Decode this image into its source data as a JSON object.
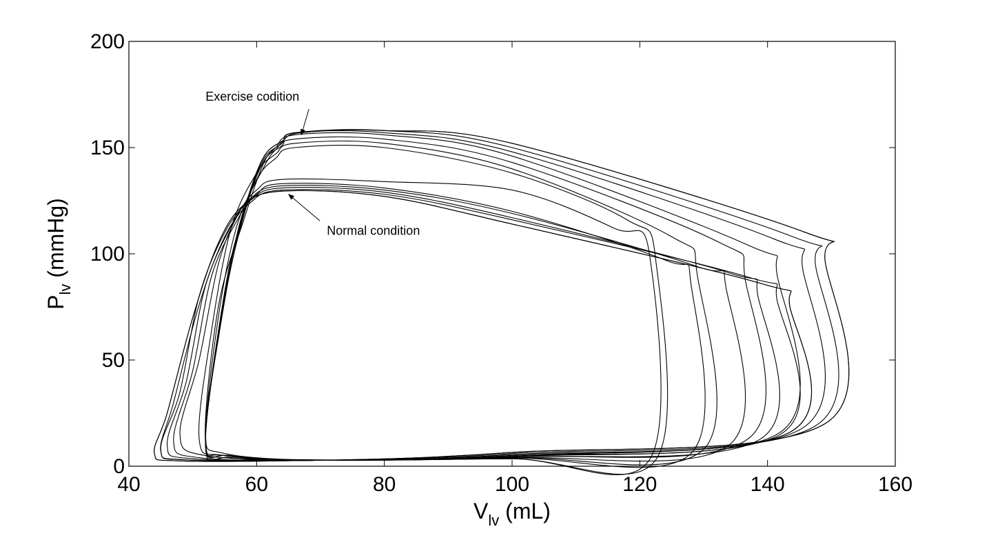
{
  "chart_data": {
    "type": "line",
    "title": "",
    "xlabel": "V",
    "xlabel_sub": "lv",
    "xlabel_unit": " (mL)",
    "ylabel": "P",
    "ylabel_sub": "lv",
    "ylabel_unit": " (mmHg)",
    "xlim": [
      40,
      160
    ],
    "ylim": [
      0,
      200
    ],
    "xticks": [
      40,
      60,
      80,
      100,
      120,
      140,
      160
    ],
    "yticks": [
      0,
      50,
      100,
      150,
      200
    ],
    "grid": false,
    "line_color": "#000000",
    "annotations": [
      {
        "text": "Exercise codition",
        "x": 52,
        "y": 172,
        "arrow_to": [
          67,
          156
        ]
      },
      {
        "text": "Normal condition",
        "x": 71,
        "y": 109,
        "arrow_to": [
          65,
          128
        ]
      }
    ],
    "series": [
      {
        "values": [
          [
            121.5,
            3
          ],
          [
            121.5,
            100
          ],
          [
            116,
            112
          ],
          [
            100,
            130
          ],
          [
            80,
            134
          ],
          [
            64,
            135
          ],
          [
            60,
            130
          ],
          [
            57,
            118
          ],
          [
            54,
            95
          ],
          [
            51,
            50
          ],
          [
            48,
            15
          ],
          [
            52,
            5
          ],
          [
            70,
            3
          ],
          [
            100,
            3.5
          ],
          [
            121.5,
            3
          ]
        ]
      },
      {
        "values": [
          [
            128,
            6
          ],
          [
            128,
            86
          ],
          [
            124,
            97
          ],
          [
            100,
            120
          ],
          [
            80,
            131
          ],
          [
            64,
            133
          ],
          [
            60,
            128
          ],
          [
            57,
            116
          ],
          [
            53,
            90
          ],
          [
            50,
            45
          ],
          [
            47,
            12
          ],
          [
            51,
            4
          ],
          [
            70,
            2.8
          ],
          [
            100,
            3.8
          ],
          [
            128,
            6
          ]
        ]
      },
      {
        "values": [
          [
            134,
            10
          ],
          [
            133.5,
            84
          ],
          [
            129,
            94
          ],
          [
            100,
            119
          ],
          [
            80,
            130
          ],
          [
            64,
            132
          ],
          [
            59,
            126
          ],
          [
            56,
            113
          ],
          [
            52,
            85
          ],
          [
            49,
            40
          ],
          [
            46,
            10
          ],
          [
            50,
            3.5
          ],
          [
            70,
            2.8
          ],
          [
            100,
            4
          ],
          [
            134,
            10
          ]
        ]
      },
      {
        "values": [
          [
            139,
            13
          ],
          [
            138.5,
            80
          ],
          [
            134,
            91
          ],
          [
            100,
            117
          ],
          [
            80,
            129
          ],
          [
            64,
            131
          ],
          [
            59,
            125
          ],
          [
            55,
            110
          ],
          [
            51,
            80
          ],
          [
            48,
            35
          ],
          [
            45,
            8
          ],
          [
            49,
            3
          ],
          [
            70,
            2.8
          ],
          [
            100,
            4.3
          ],
          [
            139,
            13
          ]
        ]
      },
      {
        "values": [
          [
            142,
            15
          ],
          [
            141.5,
            78
          ],
          [
            137,
            89
          ],
          [
            100,
            116
          ],
          [
            80,
            128
          ],
          [
            64,
            130
          ],
          [
            59,
            124
          ],
          [
            55,
            108
          ],
          [
            51,
            76
          ],
          [
            47,
            30
          ],
          [
            45,
            7
          ],
          [
            49,
            3
          ],
          [
            70,
            2.8
          ],
          [
            100,
            4.6
          ],
          [
            142,
            15
          ]
        ]
      },
      {
        "values": [
          [
            143.5,
            16
          ],
          [
            143.5,
            75
          ],
          [
            139,
            86
          ],
          [
            100,
            114
          ],
          [
            80,
            127
          ],
          [
            64,
            129.5
          ],
          [
            58,
            123
          ],
          [
            54,
            105
          ],
          [
            50,
            70
          ],
          [
            46,
            25
          ],
          [
            44,
            6
          ],
          [
            48,
            2.5
          ],
          [
            70,
            2.8
          ],
          [
            100,
            5
          ],
          [
            143.5,
            16
          ]
        ]
      },
      {
        "values": [
          [
            143.5,
            16
          ],
          [
            143.5,
            75
          ],
          [
            139,
            86
          ],
          [
            100,
            114
          ],
          [
            80,
            127
          ],
          [
            64,
            129.5
          ],
          [
            58,
            123
          ],
          [
            54,
            105
          ],
          [
            50,
            70
          ],
          [
            46,
            25
          ],
          [
            44,
            6
          ],
          [
            48,
            2.5
          ],
          [
            70,
            2.8
          ],
          [
            100,
            5
          ],
          [
            143.5,
            16
          ]
        ]
      },
      {
        "values": [
          [
            122.5,
            3
          ],
          [
            122.5,
            97
          ],
          [
            118,
            116
          ],
          [
            100,
            138
          ],
          [
            80,
            150
          ],
          [
            66,
            150
          ],
          [
            63,
            145
          ],
          [
            60,
            135
          ],
          [
            57,
            110
          ],
          [
            54,
            60
          ],
          [
            52,
            15
          ],
          [
            55,
            6
          ],
          [
            70,
            2.8
          ],
          [
            100,
            3.5
          ],
          [
            122.5,
            3
          ]
        ]
      },
      {
        "values": [
          [
            130,
            8
          ],
          [
            129,
            90
          ],
          [
            125,
            108
          ],
          [
            100,
            140
          ],
          [
            80,
            152
          ],
          [
            66,
            152
          ],
          [
            63,
            147
          ],
          [
            60,
            138
          ],
          [
            56,
            112
          ],
          [
            53,
            65
          ],
          [
            51,
            13
          ],
          [
            55,
            5
          ],
          [
            70,
            2.8
          ],
          [
            100,
            4
          ],
          [
            130,
            8
          ]
        ]
      },
      {
        "values": [
          [
            137,
            13
          ],
          [
            136.5,
            88
          ],
          [
            132,
            106
          ],
          [
            100,
            143
          ],
          [
            80,
            154
          ],
          [
            66,
            154
          ],
          [
            63,
            149
          ],
          [
            61,
            140
          ],
          [
            57,
            114
          ],
          [
            54,
            70
          ],
          [
            52,
            12
          ],
          [
            55,
            5
          ],
          [
            70,
            2.8
          ],
          [
            100,
            4.5
          ],
          [
            137,
            13
          ]
        ]
      },
      {
        "values": [
          [
            142,
            16
          ],
          [
            141.5,
            90
          ],
          [
            137,
            104
          ],
          [
            100,
            146
          ],
          [
            80,
            156
          ],
          [
            66,
            156
          ],
          [
            63,
            150
          ],
          [
            61,
            142
          ],
          [
            58,
            116
          ],
          [
            54,
            75
          ],
          [
            52,
            11
          ],
          [
            56,
            5
          ],
          [
            70,
            2.8
          ],
          [
            100,
            5
          ],
          [
            142,
            16
          ]
        ]
      },
      {
        "values": [
          [
            145.5,
            18
          ],
          [
            145.5,
            93
          ],
          [
            141,
            107
          ],
          [
            100,
            148
          ],
          [
            80,
            157
          ],
          [
            66,
            157
          ],
          [
            64,
            151
          ],
          [
            61,
            143
          ],
          [
            58,
            118
          ],
          [
            55,
            78
          ],
          [
            52,
            11
          ],
          [
            56,
            5
          ],
          [
            70,
            2.8
          ],
          [
            100,
            5.5
          ],
          [
            145.5,
            18
          ]
        ]
      },
      {
        "values": [
          [
            147.5,
            19
          ],
          [
            147.5,
            95
          ],
          [
            144,
            108
          ],
          [
            100,
            150
          ],
          [
            80,
            158
          ],
          [
            66,
            157
          ],
          [
            64,
            152
          ],
          [
            61,
            144
          ],
          [
            58,
            119
          ],
          [
            55,
            80
          ],
          [
            52,
            10
          ],
          [
            56,
            4
          ],
          [
            70,
            2.8
          ],
          [
            100,
            6
          ],
          [
            147.5,
            19
          ]
        ]
      },
      {
        "values": [
          [
            149,
            20
          ],
          [
            149,
            97
          ],
          [
            146,
            110
          ],
          [
            100,
            152
          ],
          [
            80,
            158
          ],
          [
            67,
            157
          ],
          [
            64,
            153
          ],
          [
            61,
            145
          ],
          [
            58,
            120
          ],
          [
            55,
            82
          ],
          [
            52,
            10
          ],
          [
            56,
            4
          ],
          [
            70,
            2.8
          ],
          [
            100,
            6.5
          ],
          [
            149,
            20
          ]
        ]
      },
      {
        "values": [
          [
            149,
            20
          ],
          [
            149,
            97
          ],
          [
            146,
            110
          ],
          [
            100,
            152
          ],
          [
            80,
            158
          ],
          [
            67,
            157
          ],
          [
            64,
            153
          ],
          [
            61,
            145
          ],
          [
            58,
            120
          ],
          [
            55,
            82
          ],
          [
            52,
            10
          ],
          [
            56,
            4
          ],
          [
            70,
            2.8
          ],
          [
            100,
            6.5
          ],
          [
            149,
            20
          ]
        ]
      }
    ]
  }
}
